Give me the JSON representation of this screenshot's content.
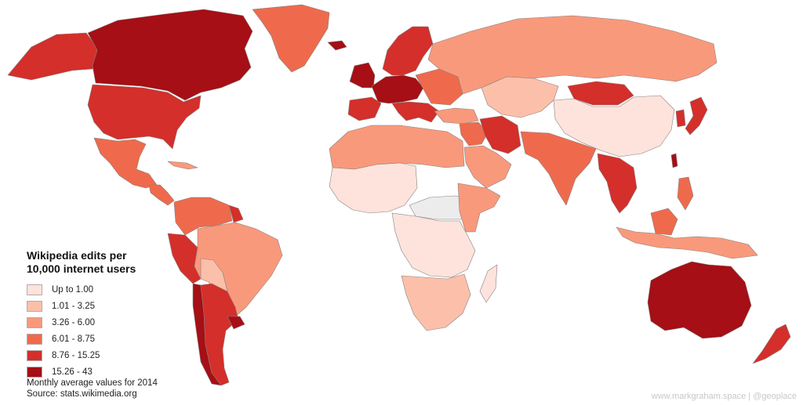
{
  "legend": {
    "title_line1": "Wikipedia edits per",
    "title_line2": "10,000 internet users",
    "classes": [
      {
        "label": "Up to 1.00",
        "color": "#fde3dc"
      },
      {
        "label": "1.01 - 3.25",
        "color": "#fcc0aa"
      },
      {
        "label": "3.26 - 6.00",
        "color": "#f9997b"
      },
      {
        "label": "6.01 - 8.75",
        "color": "#ef6a4c"
      },
      {
        "label": "8.76 - 15.25",
        "color": "#d42f2a"
      },
      {
        "label": "15.26 - 43",
        "color": "#a50f15"
      }
    ],
    "no_data_color": "#ececec"
  },
  "notes": {
    "line1": "Monthly average values for 2014",
    "line2": "Source: stats.wikimedia.org"
  },
  "credit": "www.markgraham.space | @geoplace"
}
